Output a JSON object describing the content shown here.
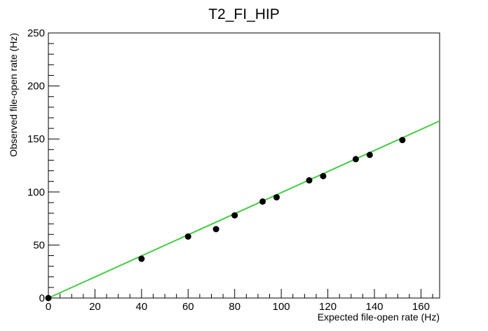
{
  "chart_data": {
    "type": "scatter",
    "title": "T2_FI_HIP",
    "xlabel": "Expected file-open rate (Hz)",
    "ylabel": "Observed file-open rate (Hz)",
    "xlim": [
      0,
      168
    ],
    "ylim": [
      0,
      250
    ],
    "x_ticks": [
      0,
      20,
      40,
      60,
      80,
      100,
      120,
      140,
      160
    ],
    "y_ticks": [
      0,
      50,
      100,
      150,
      200,
      250
    ],
    "grid": false,
    "legend": "none",
    "series": [
      {
        "type": "scatter",
        "color": "#000000",
        "points": [
          {
            "x": 0,
            "y": 0
          },
          {
            "x": 40,
            "y": 37
          },
          {
            "x": 60,
            "y": 58
          },
          {
            "x": 72,
            "y": 65
          },
          {
            "x": 80,
            "y": 78
          },
          {
            "x": 92,
            "y": 91
          },
          {
            "x": 98,
            "y": 95
          },
          {
            "x": 112,
            "y": 111
          },
          {
            "x": 118,
            "y": 115
          },
          {
            "x": 132,
            "y": 131
          },
          {
            "x": 138,
            "y": 135
          },
          {
            "x": 152,
            "y": 149
          }
        ]
      },
      {
        "type": "line",
        "color": "#44cc44",
        "points": [
          {
            "x": 0,
            "y": 0
          },
          {
            "x": 168,
            "y": 167
          }
        ]
      }
    ]
  }
}
